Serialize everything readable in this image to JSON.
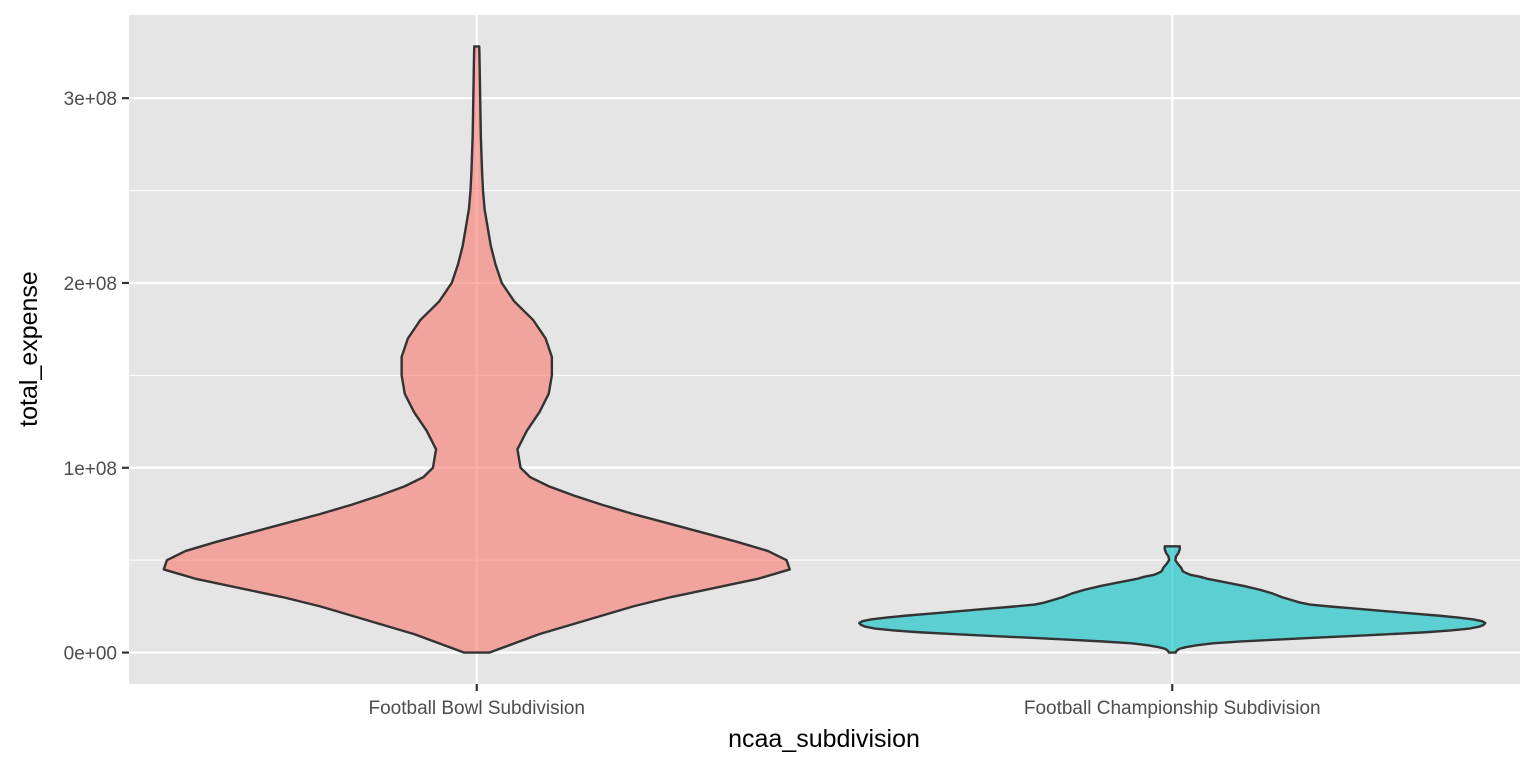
{
  "chart_data": {
    "type": "violin",
    "xlabel": "ncaa_subdivision",
    "ylabel": "total_expense",
    "categories": [
      "Football Bowl Subdivision",
      "Football Championship Subdivision"
    ],
    "yticks": [
      0,
      100000000,
      200000000,
      300000000
    ],
    "ytick_labels": [
      "0e+00",
      "1e+08",
      "2e+08",
      "3e+08"
    ],
    "ylim": [
      -17000000,
      345000000
    ],
    "grid": true,
    "legend": "none",
    "panel_color": "#e5e5e5",
    "grid_color": "#ffffff",
    "outline_color": "#333333",
    "series": [
      {
        "category": "Football Bowl Subdivision",
        "color": "#f8766d",
        "profile": [
          [
            0,
            0.04
          ],
          [
            5000000,
            0.12
          ],
          [
            10000000,
            0.2
          ],
          [
            15000000,
            0.3
          ],
          [
            20000000,
            0.4
          ],
          [
            25000000,
            0.5
          ],
          [
            30000000,
            0.62
          ],
          [
            35000000,
            0.76
          ],
          [
            40000000,
            0.9
          ],
          [
            45000000,
            1.0
          ],
          [
            50000000,
            0.99
          ],
          [
            55000000,
            0.93
          ],
          [
            60000000,
            0.83
          ],
          [
            65000000,
            0.72
          ],
          [
            70000000,
            0.61
          ],
          [
            75000000,
            0.5
          ],
          [
            80000000,
            0.4
          ],
          [
            85000000,
            0.31
          ],
          [
            90000000,
            0.23
          ],
          [
            95000000,
            0.17
          ],
          [
            100000000,
            0.14
          ],
          [
            110000000,
            0.13
          ],
          [
            120000000,
            0.16
          ],
          [
            130000000,
            0.2
          ],
          [
            140000000,
            0.23
          ],
          [
            150000000,
            0.24
          ],
          [
            160000000,
            0.24
          ],
          [
            170000000,
            0.22
          ],
          [
            180000000,
            0.18
          ],
          [
            190000000,
            0.12
          ],
          [
            200000000,
            0.08
          ],
          [
            210000000,
            0.06
          ],
          [
            220000000,
            0.045
          ],
          [
            230000000,
            0.035
          ],
          [
            240000000,
            0.025
          ],
          [
            250000000,
            0.02
          ],
          [
            260000000,
            0.017
          ],
          [
            270000000,
            0.015
          ],
          [
            280000000,
            0.013
          ],
          [
            290000000,
            0.012
          ],
          [
            300000000,
            0.011
          ],
          [
            310000000,
            0.01
          ],
          [
            320000000,
            0.009
          ],
          [
            328000000,
            0.008
          ]
        ]
      },
      {
        "category": "Football Championship Subdivision",
        "color": "#00bfc4",
        "profile": [
          [
            0,
            0.011
          ],
          [
            1000000,
            0.014
          ],
          [
            2000000,
            0.022
          ],
          [
            3000000,
            0.045
          ],
          [
            4000000,
            0.08
          ],
          [
            5000000,
            0.13
          ],
          [
            6000000,
            0.22
          ],
          [
            7000000,
            0.33
          ],
          [
            8000000,
            0.45
          ],
          [
            9000000,
            0.58
          ],
          [
            10000000,
            0.7
          ],
          [
            11000000,
            0.81
          ],
          [
            12000000,
            0.89
          ],
          [
            13000000,
            0.95
          ],
          [
            14000000,
            0.98
          ],
          [
            15000000,
            0.995
          ],
          [
            16000000,
            1.0
          ],
          [
            17000000,
            0.99
          ],
          [
            18000000,
            0.96
          ],
          [
            19000000,
            0.91
          ],
          [
            20000000,
            0.85
          ],
          [
            21000000,
            0.78
          ],
          [
            22000000,
            0.71
          ],
          [
            23000000,
            0.64
          ],
          [
            24000000,
            0.57
          ],
          [
            25000000,
            0.5
          ],
          [
            26000000,
            0.44
          ],
          [
            27000000,
            0.41
          ],
          [
            28000000,
            0.39
          ],
          [
            29000000,
            0.37
          ],
          [
            30000000,
            0.35
          ],
          [
            32000000,
            0.32
          ],
          [
            34000000,
            0.28
          ],
          [
            36000000,
            0.23
          ],
          [
            38000000,
            0.17
          ],
          [
            40000000,
            0.11
          ],
          [
            41000000,
            0.09
          ],
          [
            42000000,
            0.06
          ],
          [
            43000000,
            0.045
          ],
          [
            44000000,
            0.034
          ],
          [
            46000000,
            0.028
          ],
          [
            48000000,
            0.018
          ],
          [
            50000000,
            0.01
          ],
          [
            52000000,
            0.012
          ],
          [
            54000000,
            0.02
          ],
          [
            56000000,
            0.024
          ],
          [
            57500000,
            0.024
          ]
        ]
      }
    ]
  }
}
